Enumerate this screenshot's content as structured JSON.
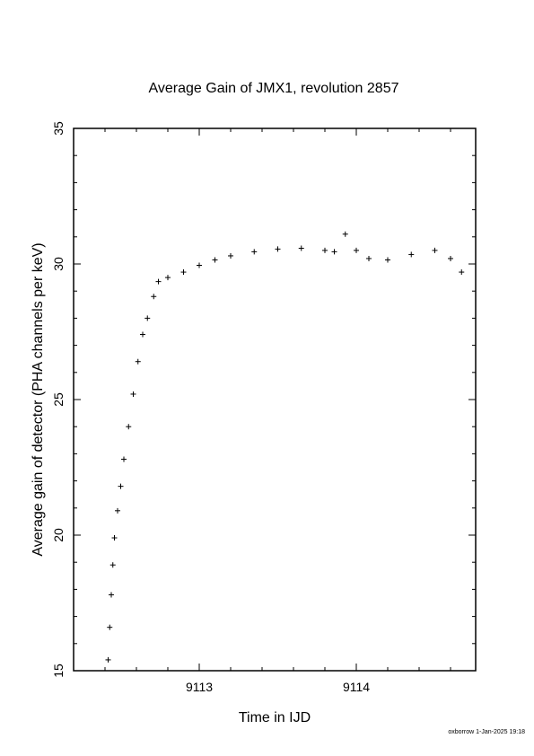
{
  "chart_data": {
    "type": "scatter",
    "title": "Average Gain of JMX1, revolution 2857",
    "xlabel": "Time in IJD",
    "ylabel": "Average gain of detector (PHA channels per keV)",
    "xlim": [
      9112.2,
      9114.76
    ],
    "ylim": [
      15,
      35
    ],
    "x_ticks": [
      9113,
      9114
    ],
    "x_tick_labels": [
      "9113",
      "9114"
    ],
    "y_ticks": [
      15,
      20,
      25,
      30,
      35
    ],
    "y_tick_labels": [
      "15",
      "20",
      "25",
      "30",
      "35"
    ],
    "marker": "+",
    "grid": false,
    "legend": false,
    "series": [
      {
        "marker_color": "#000000",
        "points": [
          [
            9112.42,
            15.4
          ],
          [
            9112.43,
            16.6
          ],
          [
            9112.44,
            17.8
          ],
          [
            9112.45,
            18.9
          ],
          [
            9112.46,
            19.9
          ],
          [
            9112.48,
            20.9
          ],
          [
            9112.5,
            21.8
          ],
          [
            9112.52,
            22.8
          ],
          [
            9112.55,
            24.0
          ],
          [
            9112.58,
            25.2
          ],
          [
            9112.61,
            26.4
          ],
          [
            9112.64,
            27.4
          ],
          [
            9112.67,
            28.0
          ],
          [
            9112.71,
            28.8
          ],
          [
            9112.74,
            29.35
          ],
          [
            9112.8,
            29.5
          ],
          [
            9112.9,
            29.7
          ],
          [
            9113.0,
            29.95
          ],
          [
            9113.1,
            30.15
          ],
          [
            9113.2,
            30.3
          ],
          [
            9113.35,
            30.45
          ],
          [
            9113.5,
            30.55
          ],
          [
            9113.65,
            30.58
          ],
          [
            9113.8,
            30.5
          ],
          [
            9113.86,
            30.45
          ],
          [
            9113.93,
            31.1
          ],
          [
            9114.0,
            30.5
          ],
          [
            9114.08,
            30.2
          ],
          [
            9114.2,
            30.15
          ],
          [
            9114.35,
            30.35
          ],
          [
            9114.5,
            30.5
          ],
          [
            9114.6,
            30.2
          ],
          [
            9114.67,
            29.7
          ]
        ]
      }
    ]
  },
  "footer": {
    "stamp": "oxborrow  1-Jan-2025 19:18"
  }
}
